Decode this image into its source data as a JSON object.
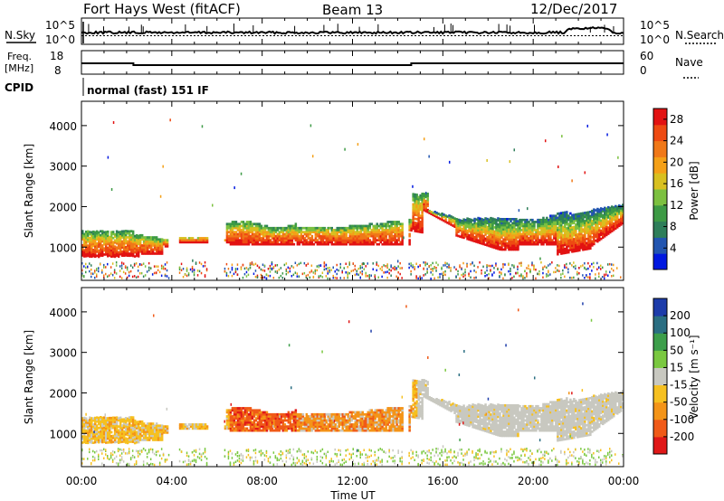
{
  "header": {
    "radar": "Fort Hays West (fitACF)",
    "beam": "Beam 13",
    "date": "12/Dec/2017"
  },
  "noise_panel": {
    "left_label": "N.Sky",
    "left_ticks": [
      "10^5",
      "10^0"
    ],
    "right_label": "N.Search",
    "right_ticks": [
      "10^5",
      "10^0"
    ]
  },
  "freq_panel": {
    "left_label_1": "Freq.",
    "left_label_2": "[MHz]",
    "left_ticks": [
      "18",
      "8"
    ],
    "right_label": "Nave",
    "right_ticks": [
      "60",
      "0"
    ]
  },
  "cpid": {
    "label": "CPID",
    "value": "normal (fast) 151 IF"
  },
  "time_axis": {
    "ticks": [
      "00:00",
      "04:00",
      "08:00",
      "12:00",
      "16:00",
      "20:00",
      "00:00"
    ],
    "xlabel": "Time UT"
  },
  "chart_data": [
    {
      "type": "heatmap",
      "name": "power",
      "ylabel": "Slant Range [km]",
      "ylim": [
        180,
        4600
      ],
      "yticks": [
        "1000",
        "2000",
        "3000",
        "4000"
      ],
      "xlim_hours": [
        0,
        24
      ],
      "colorbar": {
        "label": "Power [dB]",
        "ticks": [
          "4",
          "8",
          "12",
          "16",
          "20",
          "24",
          "28"
        ],
        "range": [
          0,
          30
        ],
        "colors": [
          "#0018e0",
          "#2255b0",
          "#2e7e5a",
          "#3d9a45",
          "#7cc040",
          "#d8c020",
          "#f4a018",
          "#f07818",
          "#ee4a12",
          "#e21212"
        ]
      }
    },
    {
      "type": "heatmap",
      "name": "velocity",
      "ylabel": "Slant Range [km]",
      "ylim": [
        180,
        4600
      ],
      "yticks": [
        "1000",
        "2000",
        "3000",
        "4000"
      ],
      "xlim_hours": [
        0,
        24
      ],
      "colorbar": {
        "label": "Velocity [m s⁻¹]",
        "ticks": [
          "200",
          "100",
          "50",
          "15",
          "-15",
          "-50",
          "-100",
          "-200"
        ],
        "range": [
          -250,
          250
        ],
        "colors": [
          "#e01818",
          "#f05a18",
          "#f49418",
          "#f6c020",
          "#c8c8c0",
          "#7ac840",
          "#3c9e4a",
          "#2a6e82",
          "#1d3caa"
        ]
      }
    }
  ]
}
